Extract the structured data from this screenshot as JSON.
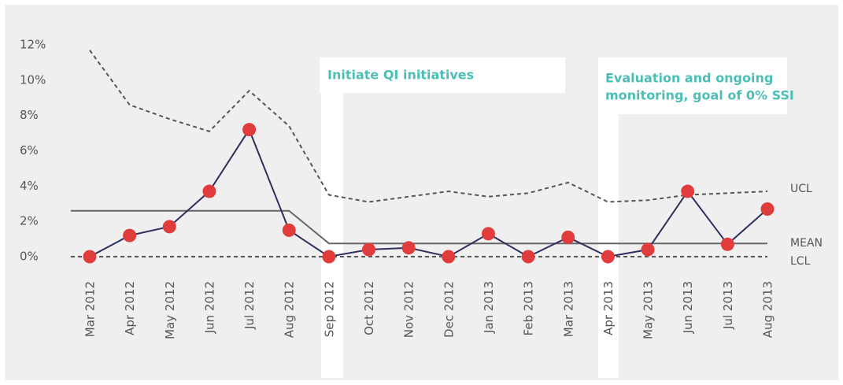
{
  "chart_data": {
    "type": "line",
    "categories": [
      "Mar 2012",
      "Apr 2012",
      "May 2012",
      "Jun 2012",
      "Jul 2012",
      "Aug 2012",
      "Sep 2012",
      "Oct 2012",
      "Nov 2012",
      "Dec 2012",
      "Jan 2013",
      "Feb 2013",
      "Mar 2013",
      "Apr 2013",
      "May 2013",
      "Jun 2013",
      "Jul 2013",
      "Aug 2013"
    ],
    "series": [
      {
        "color": "#2f2f5f",
        "marker_color": "#e03c3c",
        "values": [
          0,
          1.2,
          1.7,
          3.7,
          7.2,
          1.5,
          0,
          0.4,
          0.5,
          0,
          1.3,
          0,
          1.1,
          0,
          0.4,
          3.7,
          0.7,
          2.7
        ]
      },
      {
        "name": "UCL",
        "color": "#555555",
        "dashed": true,
        "values": [
          11.7,
          8.6,
          7.8,
          7.1,
          9.4,
          7.4,
          3.5,
          3.1,
          3.4,
          3.7,
          3.4,
          3.6,
          4.2,
          3.1,
          3.2,
          3.5,
          3.6,
          3.7
        ]
      },
      {
        "name": "MEAN",
        "color": "#666666",
        "dashed": false,
        "values": [
          2.6,
          2.6,
          2.6,
          2.6,
          2.6,
          2.6,
          0.75,
          0.75,
          0.75,
          0.75,
          0.75,
          0.75,
          0.75,
          0.75,
          0.75,
          0.75,
          0.75,
          0.75
        ]
      },
      {
        "name": "LCL",
        "color": "#555555",
        "dashed": true,
        "values": [
          0,
          0,
          0,
          0,
          0,
          0,
          0,
          0,
          0,
          0,
          0,
          0,
          0,
          0,
          0,
          0,
          0,
          0
        ]
      }
    ],
    "annotations": [
      [
        "Initiate QI initiatives"
      ],
      [
        "Evaluation and ongoing",
        "monitoring, goal of 0% SSI"
      ]
    ],
    "ylim": [
      0,
      12
    ],
    "yticks": [
      {
        "value": 0,
        "label": "0%"
      },
      {
        "value": 2,
        "label": "2%"
      },
      {
        "value": 4,
        "label": "4%"
      },
      {
        "value": 6,
        "label": "6%"
      },
      {
        "value": 8,
        "label": "8%"
      },
      {
        "value": 10,
        "label": "10%"
      },
      {
        "value": 12,
        "label": "12%"
      }
    ],
    "grid": false
  }
}
